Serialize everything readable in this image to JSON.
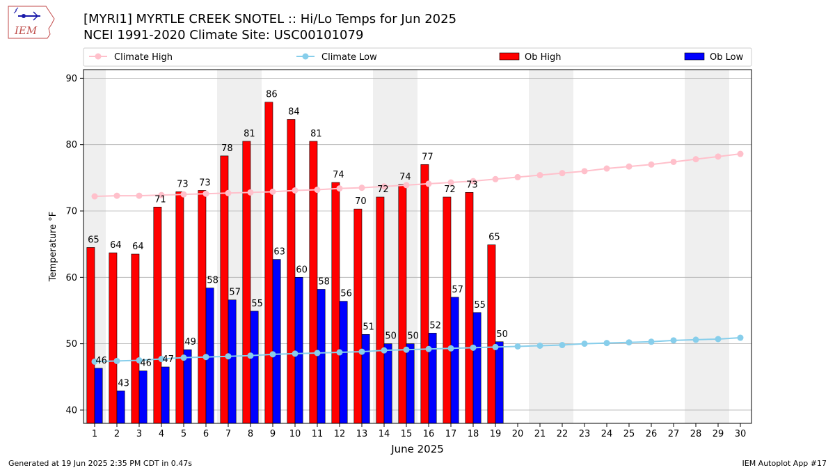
{
  "header": {
    "title_line1": "[MYRI1] MYRTLE CREEK SNOTEL :: Hi/Lo Temps for Jun 2025",
    "title_line2": "NCEI 1991-2020 Climate Site: USC00101079"
  },
  "logo": {
    "text": "IEM"
  },
  "footer": {
    "generated": "Generated at 19 Jun 2025 2:35 PM CDT in 0.47s",
    "app": "IEM Autoplot App #17"
  },
  "chart_data": {
    "type": "bar",
    "xlabel": "June 2025",
    "ylabel": "Temperature °F",
    "xlim": [
      0.5,
      30.5
    ],
    "ylim": [
      38,
      91.3
    ],
    "yticks": [
      40,
      50,
      60,
      70,
      80,
      90
    ],
    "days": [
      1,
      2,
      3,
      4,
      5,
      6,
      7,
      8,
      9,
      10,
      11,
      12,
      13,
      14,
      15,
      16,
      17,
      18,
      19,
      20,
      21,
      22,
      23,
      24,
      25,
      26,
      27,
      28,
      29,
      30
    ],
    "weekend_shading": [
      [
        1,
        1
      ],
      [
        7,
        8
      ],
      [
        14,
        15
      ],
      [
        21,
        22
      ],
      [
        28,
        29
      ]
    ],
    "grid": "horizontal",
    "legend_position": "top",
    "series": [
      {
        "name": "Climate High",
        "kind": "line",
        "color": "#ffc0cb",
        "values": [
          72.2,
          72.3,
          72.3,
          72.4,
          72.5,
          72.6,
          72.7,
          72.8,
          72.9,
          73.1,
          73.2,
          73.4,
          73.5,
          73.7,
          73.9,
          74.1,
          74.3,
          74.5,
          74.8,
          75.1,
          75.4,
          75.7,
          76.0,
          76.4,
          76.7,
          77.0,
          77.4,
          77.8,
          78.2,
          78.6
        ]
      },
      {
        "name": "Climate Low",
        "kind": "line",
        "color": "#87ceeb",
        "values": [
          47.3,
          47.4,
          47.5,
          47.7,
          47.9,
          48.0,
          48.1,
          48.2,
          48.4,
          48.5,
          48.6,
          48.7,
          48.8,
          49.0,
          49.1,
          49.2,
          49.3,
          49.4,
          49.5,
          49.6,
          49.7,
          49.8,
          50.0,
          50.1,
          50.2,
          50.3,
          50.5,
          50.6,
          50.7,
          50.9
        ]
      },
      {
        "name": "Ob High",
        "kind": "bar",
        "color": "#ff0000",
        "values": [
          64.5,
          63.7,
          63.5,
          70.6,
          72.9,
          73.1,
          78.3,
          80.5,
          86.4,
          83.8,
          80.5,
          74.3,
          70.3,
          72.1,
          74.0,
          77.0,
          72.1,
          72.8,
          64.9
        ],
        "labels": [
          "65",
          "64",
          "64",
          "71",
          "73",
          "73",
          "78",
          "81",
          "86",
          "84",
          "81",
          "74",
          "70",
          "72",
          "74",
          "77",
          "72",
          "73",
          "65"
        ]
      },
      {
        "name": "Ob Low",
        "kind": "bar",
        "color": "#0000ff",
        "values": [
          46.3,
          42.9,
          45.9,
          46.5,
          49.1,
          58.4,
          56.6,
          54.9,
          62.7,
          60.0,
          58.2,
          56.4,
          51.4,
          50.0,
          50.0,
          51.6,
          57.0,
          54.7,
          50.3
        ],
        "labels": [
          "46",
          "43",
          "46",
          "47",
          "49",
          "58",
          "57",
          "55",
          "63",
          "60",
          "58",
          "56",
          "51",
          "50",
          "50",
          "52",
          "57",
          "55",
          "50"
        ]
      }
    ]
  }
}
